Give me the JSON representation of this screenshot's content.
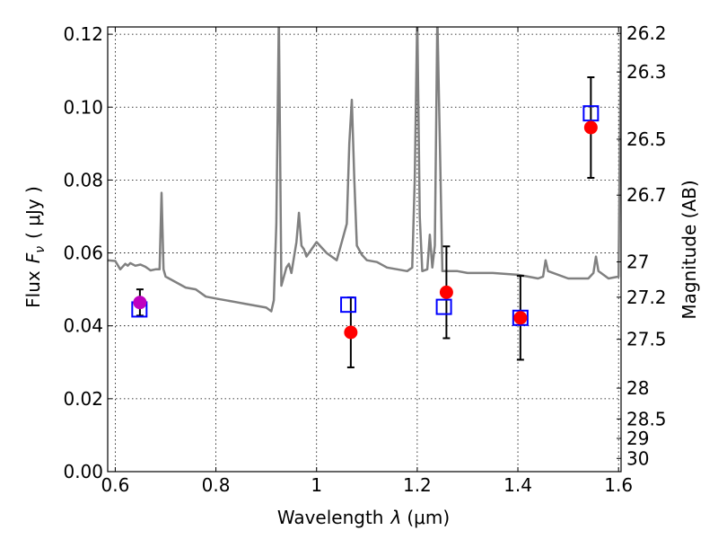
{
  "chart_data": {
    "type": "scatter",
    "title": "",
    "xlabel_text": "Wavelength",
    "xlabel_symbol": "λ",
    "xlabel_unit": "(μm)",
    "ylabel_text": "Flux",
    "ylabel_symbol": "F",
    "ylabel_subscript": "ν",
    "ylabel_unit": "( μJy )",
    "ylabel_right": "Magnitude (AB)",
    "xlim": [
      0.585,
      1.605
    ],
    "ylim": [
      0.0,
      0.122
    ],
    "grid": true,
    "x_ticks": [
      0.6,
      0.8,
      1.0,
      1.2,
      1.4,
      1.6
    ],
    "x_tick_labels": [
      "0.6",
      "0.8",
      "1",
      "1.2",
      "1.4",
      "1.6"
    ],
    "y_ticks": [
      0.0,
      0.02,
      0.04,
      0.06,
      0.08,
      0.1,
      0.12
    ],
    "y_tick_labels": [
      "0.00",
      "0.02",
      "0.04",
      "0.06",
      "0.08",
      "0.10",
      "0.12"
    ],
    "right_ticks": [
      26.2,
      26.3,
      26.5,
      26.7,
      27,
      27.2,
      27.5,
      28,
      28.5,
      29,
      30
    ],
    "right_tick_labels": [
      "26.2",
      "26.3",
      "26.5",
      "26.7",
      "27",
      "27.2",
      "27.5",
      "28",
      "28.5",
      "29",
      "30"
    ],
    "right_ab_zero": 23.9,
    "colors": {
      "template": "#808080",
      "observed": "#ff0000",
      "model": "#0000ff",
      "overlap": "#bf00bf",
      "errorbar": "#000000",
      "grid": "#000000"
    },
    "series": [
      {
        "marker": "line",
        "x": [
          0.585,
          0.6,
          0.61,
          0.62,
          0.625,
          0.63,
          0.64,
          0.65,
          0.66,
          0.67,
          0.68,
          0.688,
          0.692,
          0.696,
          0.7,
          0.72,
          0.74,
          0.76,
          0.78,
          0.8,
          0.82,
          0.84,
          0.86,
          0.88,
          0.9,
          0.91,
          0.915,
          0.92,
          0.925,
          0.93,
          0.94,
          0.945,
          0.95,
          0.96,
          0.965,
          0.97,
          0.975,
          0.98,
          0.99,
          1.0,
          1.02,
          1.04,
          1.05,
          1.06,
          1.065,
          1.07,
          1.075,
          1.08,
          1.09,
          1.1,
          1.12,
          1.14,
          1.16,
          1.18,
          1.19,
          1.195,
          1.2,
          1.205,
          1.21,
          1.22,
          1.225,
          1.23,
          1.235,
          1.24,
          1.25,
          1.28,
          1.3,
          1.35,
          1.4,
          1.42,
          1.44,
          1.45,
          1.455,
          1.46,
          1.5,
          1.54,
          1.55,
          1.555,
          1.56,
          1.58,
          1.6,
          1.605
        ],
        "y": [
          0.058,
          0.0578,
          0.0555,
          0.057,
          0.0565,
          0.0572,
          0.0565,
          0.0568,
          0.0562,
          0.0552,
          0.0555,
          0.0555,
          0.0765,
          0.0555,
          0.0535,
          0.052,
          0.0505,
          0.05,
          0.048,
          0.0475,
          0.047,
          0.0465,
          0.046,
          0.0455,
          0.045,
          0.044,
          0.047,
          0.068,
          0.125,
          0.051,
          0.056,
          0.057,
          0.0545,
          0.063,
          0.071,
          0.062,
          0.061,
          0.059,
          0.061,
          0.063,
          0.06,
          0.058,
          0.063,
          0.068,
          0.09,
          0.102,
          0.08,
          0.062,
          0.0595,
          0.058,
          0.0575,
          0.056,
          0.0555,
          0.055,
          0.056,
          0.08,
          0.125,
          0.07,
          0.055,
          0.0555,
          0.065,
          0.056,
          0.062,
          0.125,
          0.055,
          0.055,
          0.0545,
          0.0545,
          0.054,
          0.0535,
          0.053,
          0.0535,
          0.058,
          0.055,
          0.053,
          0.053,
          0.0545,
          0.059,
          0.055,
          0.053,
          0.0535,
          0.125
        ]
      },
      {
        "marker": "circle",
        "x": [
          1.068,
          1.258,
          1.405,
          1.545
        ],
        "y": [
          0.0382,
          0.0492,
          0.0422,
          0.0944
        ],
        "yerr": [
          0.0096,
          0.0126,
          0.0115,
          0.0138
        ]
      },
      {
        "marker": "square",
        "x": [
          0.648,
          1.063,
          1.253,
          1.405,
          1.545
        ],
        "y": [
          0.0445,
          0.0458,
          0.0452,
          0.0422,
          0.0983
        ]
      },
      {
        "marker": "circle-overlap",
        "x": [
          0.649
        ],
        "y": [
          0.0464
        ],
        "yerr": [
          0.0036
        ]
      }
    ]
  }
}
